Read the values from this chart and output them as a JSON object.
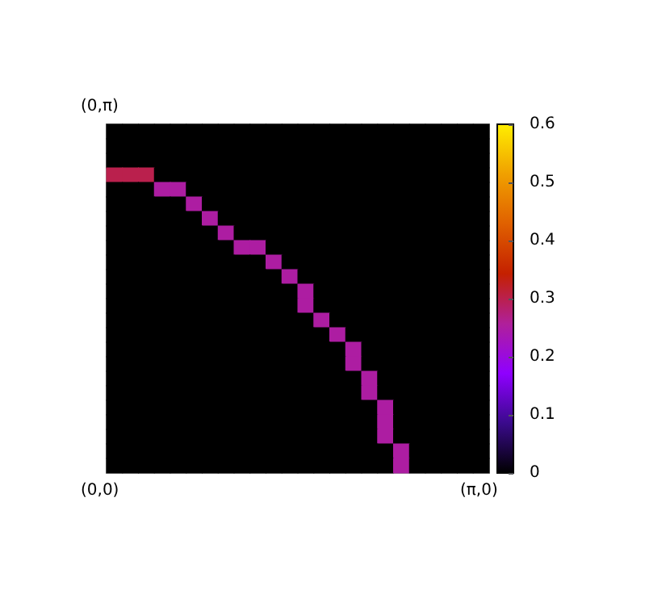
{
  "chart_data": {
    "type": "heatmap",
    "annotations": [
      "(0,π)",
      "(0,0)",
      "(π,0)"
    ],
    "categories": [
      null,
      null,
      null,
      null,
      null,
      null,
      null,
      null,
      null,
      null,
      null,
      null,
      null,
      null,
      null,
      null,
      null,
      null,
      null,
      null,
      null,
      null,
      null,
      null
    ],
    "y_categories": [
      null,
      null,
      null,
      null,
      null,
      null,
      null,
      null,
      null,
      null,
      null,
      null,
      null,
      null,
      null,
      null,
      null,
      null,
      null,
      null,
      null,
      null,
      null,
      null
    ],
    "clim": [
      0,
      0.6
    ],
    "cticks": [
      0,
      0.1,
      0.2,
      0.3,
      0.4,
      0.5,
      0.6
    ],
    "cells": [
      [
        0,
        0,
        0,
        0,
        0,
        0,
        0,
        0,
        0,
        0,
        0,
        0,
        0,
        0,
        0,
        0,
        0,
        0,
        0,
        0,
        0,
        0,
        0,
        0
      ],
      [
        0,
        0,
        0,
        0,
        0,
        0,
        0,
        0,
        0,
        0,
        0,
        0,
        0,
        0,
        0,
        0,
        0,
        0,
        0,
        0,
        0,
        0,
        0,
        0
      ],
      [
        0,
        0,
        0,
        0,
        0,
        0,
        0,
        0,
        0,
        0,
        0,
        0,
        0,
        0,
        0,
        0,
        0,
        0,
        0,
        0,
        0,
        0,
        0,
        0
      ],
      [
        0.3,
        0.3,
        0.3,
        0,
        0,
        0,
        0,
        0,
        0,
        0,
        0,
        0,
        0,
        0,
        0,
        0,
        0,
        0,
        0,
        0,
        0,
        0,
        0,
        0
      ],
      [
        0,
        0,
        0,
        0.25,
        0.25,
        0,
        0,
        0,
        0,
        0,
        0,
        0,
        0,
        0,
        0,
        0,
        0,
        0,
        0,
        0,
        0,
        0,
        0,
        0
      ],
      [
        0,
        0,
        0,
        0,
        0,
        0.25,
        0,
        0,
        0,
        0,
        0,
        0,
        0,
        0,
        0,
        0,
        0,
        0,
        0,
        0,
        0,
        0,
        0,
        0
      ],
      [
        0,
        0,
        0,
        0,
        0,
        0,
        0.25,
        0,
        0,
        0,
        0,
        0,
        0,
        0,
        0,
        0,
        0,
        0,
        0,
        0,
        0,
        0,
        0,
        0
      ],
      [
        0,
        0,
        0,
        0,
        0,
        0,
        0,
        0.25,
        0,
        0,
        0,
        0,
        0,
        0,
        0,
        0,
        0,
        0,
        0,
        0,
        0,
        0,
        0,
        0
      ],
      [
        0,
        0,
        0,
        0,
        0,
        0,
        0,
        0,
        0.25,
        0.25,
        0,
        0,
        0,
        0,
        0,
        0,
        0,
        0,
        0,
        0,
        0,
        0,
        0,
        0
      ],
      [
        0,
        0,
        0,
        0,
        0,
        0,
        0,
        0,
        0,
        0,
        0.25,
        0,
        0,
        0,
        0,
        0,
        0,
        0,
        0,
        0,
        0,
        0,
        0,
        0
      ],
      [
        0,
        0,
        0,
        0,
        0,
        0,
        0,
        0,
        0,
        0,
        0,
        0.25,
        0,
        0,
        0,
        0,
        0,
        0,
        0,
        0,
        0,
        0,
        0,
        0
      ],
      [
        0,
        0,
        0,
        0,
        0,
        0,
        0,
        0,
        0,
        0,
        0,
        0,
        0.25,
        0,
        0,
        0,
        0,
        0,
        0,
        0,
        0,
        0,
        0,
        0
      ],
      [
        0,
        0,
        0,
        0,
        0,
        0,
        0,
        0,
        0,
        0,
        0,
        0,
        0.25,
        0,
        0,
        0,
        0,
        0,
        0,
        0,
        0,
        0,
        0,
        0
      ],
      [
        0,
        0,
        0,
        0,
        0,
        0,
        0,
        0,
        0,
        0,
        0,
        0,
        0,
        0.25,
        0,
        0,
        0,
        0,
        0,
        0,
        0,
        0,
        0,
        0
      ],
      [
        0,
        0,
        0,
        0,
        0,
        0,
        0,
        0,
        0,
        0,
        0,
        0,
        0,
        0,
        0.25,
        0,
        0,
        0,
        0,
        0,
        0,
        0,
        0,
        0
      ],
      [
        0,
        0,
        0,
        0,
        0,
        0,
        0,
        0,
        0,
        0,
        0,
        0,
        0,
        0,
        0,
        0.25,
        0,
        0,
        0,
        0,
        0,
        0,
        0,
        0
      ],
      [
        0,
        0,
        0,
        0,
        0,
        0,
        0,
        0,
        0,
        0,
        0,
        0,
        0,
        0,
        0,
        0.25,
        0,
        0,
        0,
        0,
        0,
        0,
        0,
        0
      ],
      [
        0,
        0,
        0,
        0,
        0,
        0,
        0,
        0,
        0,
        0,
        0,
        0,
        0,
        0,
        0,
        0,
        0.25,
        0,
        0,
        0,
        0,
        0,
        0,
        0
      ],
      [
        0,
        0,
        0,
        0,
        0,
        0,
        0,
        0,
        0,
        0,
        0,
        0,
        0,
        0,
        0,
        0,
        0.25,
        0,
        0,
        0,
        0,
        0,
        0,
        0
      ],
      [
        0,
        0,
        0,
        0,
        0,
        0,
        0,
        0,
        0,
        0,
        0,
        0,
        0,
        0,
        0,
        0,
        0,
        0.25,
        0,
        0,
        0,
        0,
        0,
        0
      ],
      [
        0,
        0,
        0,
        0,
        0,
        0,
        0,
        0,
        0,
        0,
        0,
        0,
        0,
        0,
        0,
        0,
        0,
        0.25,
        0,
        0,
        0,
        0,
        0,
        0
      ],
      [
        0,
        0,
        0,
        0,
        0,
        0,
        0,
        0,
        0,
        0,
        0,
        0,
        0,
        0,
        0,
        0,
        0,
        0.25,
        0,
        0,
        0,
        0,
        0,
        0
      ],
      [
        0,
        0,
        0,
        0,
        0,
        0,
        0,
        0,
        0,
        0,
        0,
        0,
        0,
        0,
        0,
        0,
        0,
        0,
        0.25,
        0,
        0,
        0,
        0,
        0
      ],
      [
        0,
        0,
        0,
        0,
        0,
        0,
        0,
        0,
        0,
        0,
        0,
        0,
        0,
        0,
        0,
        0,
        0,
        0,
        0.25,
        0,
        0,
        0,
        0,
        0
      ]
    ]
  }
}
